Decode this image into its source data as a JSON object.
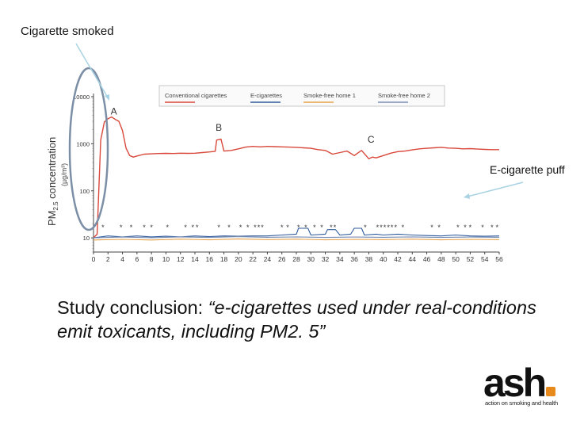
{
  "annotations": {
    "cigarette_smoked": "Cigarette smoked",
    "ecigarette_puff": "E-cigarette puff"
  },
  "conclusion": "Study conclusion: “e-cigarettes used under real-conditions emit toxicants, including PM2. 5”",
  "logo": {
    "word": "ash",
    "tagline": "action on smoking and health",
    "dot_color": "#e8891c"
  },
  "chart_data": {
    "type": "line",
    "ylabel_main": "PM",
    "ylabel_sub": "2.5",
    "ylabel_rest": " concentration",
    "ylabel_unit": "(µg/m³)",
    "yscale": "log",
    "ylim": [
      5,
      10000
    ],
    "yticks": [
      {
        "value": 10000,
        "label": "10000"
      },
      {
        "value": 1000,
        "label": "1000"
      },
      {
        "value": 100,
        "label": "100"
      },
      {
        "value": 10,
        "label": "10"
      }
    ],
    "xlim": [
      0,
      56
    ],
    "xticks": [
      "0",
      "2",
      "4",
      "6",
      "8",
      "10",
      "12",
      "14",
      "16",
      "18",
      "20",
      "22",
      "24",
      "26",
      "28",
      "30",
      "32",
      "34",
      "36",
      "38",
      "40",
      "42",
      "44",
      "46",
      "48",
      "50",
      "52",
      "54",
      "56"
    ],
    "legend_position": "top",
    "point_labels": [
      {
        "label": "A",
        "x": 2.8,
        "y": 4200
      },
      {
        "label": "B",
        "x": 17.3,
        "y": 1900
      },
      {
        "label": "C",
        "x": 38.3,
        "y": 1050
      }
    ],
    "puff_markers_x": [
      1.3,
      3.8,
      5.2,
      7.0,
      8.0,
      10.2,
      12.7,
      13.7,
      14.3,
      17.3,
      18.7,
      20.3,
      21.3,
      22.3,
      22.8,
      23.3,
      26.0,
      26.8,
      28.3,
      29.3,
      30.5,
      31.5,
      32.8,
      33.3,
      37.5,
      39.2,
      39.7,
      40.2,
      40.7,
      41.2,
      41.7,
      42.7,
      46.7,
      47.7,
      50.3,
      51.3,
      52.0,
      53.7,
      55.0,
      55.7
    ],
    "series": [
      {
        "name": "Conventional cigarettes",
        "color": "#d9483b",
        "points": [
          [
            0,
            10
          ],
          [
            0.5,
            12
          ],
          [
            1.0,
            1200
          ],
          [
            1.5,
            2900
          ],
          [
            2.0,
            3400
          ],
          [
            2.5,
            3700
          ],
          [
            3.0,
            3300
          ],
          [
            3.5,
            3000
          ],
          [
            4.0,
            1900
          ],
          [
            4.5,
            800
          ],
          [
            5.0,
            560
          ],
          [
            5.5,
            520
          ],
          [
            6.0,
            550
          ],
          [
            7.0,
            600
          ],
          [
            8.0,
            610
          ],
          [
            9.0,
            620
          ],
          [
            10.0,
            625
          ],
          [
            11.0,
            620
          ],
          [
            12.0,
            630
          ],
          [
            13.0,
            625
          ],
          [
            14.0,
            630
          ],
          [
            15.0,
            650
          ],
          [
            16.0,
            670
          ],
          [
            16.8,
            690
          ],
          [
            17.0,
            1200
          ],
          [
            17.6,
            1250
          ],
          [
            18.0,
            700
          ],
          [
            19.0,
            720
          ],
          [
            20.0,
            780
          ],
          [
            21.0,
            850
          ],
          [
            22.0,
            880
          ],
          [
            23.0,
            860
          ],
          [
            24.0,
            880
          ],
          [
            25.0,
            870
          ],
          [
            26.0,
            860
          ],
          [
            27.0,
            850
          ],
          [
            28.0,
            840
          ],
          [
            29.0,
            820
          ],
          [
            30.0,
            800
          ],
          [
            31.0,
            750
          ],
          [
            32.0,
            720
          ],
          [
            33.0,
            600
          ],
          [
            34.0,
            650
          ],
          [
            35.0,
            700
          ],
          [
            36.0,
            560
          ],
          [
            36.5,
            640
          ],
          [
            37.0,
            720
          ],
          [
            38.0,
            480
          ],
          [
            38.5,
            520
          ],
          [
            39.0,
            500
          ],
          [
            40.0,
            560
          ],
          [
            41.0,
            630
          ],
          [
            42.0,
            680
          ],
          [
            43.0,
            700
          ],
          [
            44.0,
            740
          ],
          [
            45.0,
            780
          ],
          [
            46.0,
            800
          ],
          [
            47.0,
            820
          ],
          [
            48.0,
            840
          ],
          [
            49.0,
            810
          ],
          [
            50.0,
            800
          ],
          [
            51.0,
            780
          ],
          [
            52.0,
            790
          ],
          [
            53.0,
            770
          ],
          [
            54.0,
            760
          ],
          [
            55.0,
            750
          ],
          [
            56.0,
            750
          ]
        ]
      },
      {
        "name": "E-cigarettes",
        "color": "#2f5a9a",
        "points": [
          [
            0,
            10
          ],
          [
            2,
            11
          ],
          [
            4,
            10.5
          ],
          [
            6,
            11
          ],
          [
            8,
            10.5
          ],
          [
            10,
            10.8
          ],
          [
            12,
            10.5
          ],
          [
            14,
            11
          ],
          [
            16,
            10.6
          ],
          [
            18,
            11
          ],
          [
            20,
            10.8
          ],
          [
            22,
            11
          ],
          [
            24,
            11
          ],
          [
            26,
            11.5
          ],
          [
            28,
            12
          ],
          [
            28.3,
            16
          ],
          [
            29.6,
            16
          ],
          [
            30,
            11.5
          ],
          [
            32,
            12
          ],
          [
            32.3,
            15
          ],
          [
            33.4,
            15
          ],
          [
            34,
            11.5
          ],
          [
            35.5,
            12
          ],
          [
            36,
            16
          ],
          [
            37,
            16
          ],
          [
            37.4,
            11.5
          ],
          [
            39,
            12
          ],
          [
            40,
            11.5
          ],
          [
            42,
            12
          ],
          [
            44,
            11.5
          ],
          [
            46,
            11.2
          ],
          [
            48,
            11
          ],
          [
            50,
            11.5
          ],
          [
            52,
            11
          ],
          [
            54,
            10.8
          ],
          [
            56,
            11
          ]
        ]
      },
      {
        "name": "Smoke-free home 1",
        "color": "#e6a14a",
        "points": [
          [
            0,
            9
          ],
          [
            4,
            9.3
          ],
          [
            8,
            9
          ],
          [
            12,
            9.4
          ],
          [
            16,
            9.1
          ],
          [
            20,
            9.5
          ],
          [
            24,
            9.2
          ],
          [
            28,
            9.4
          ],
          [
            32,
            9.1
          ],
          [
            36,
            9.3
          ],
          [
            40,
            9.2
          ],
          [
            44,
            9.4
          ],
          [
            48,
            9.1
          ],
          [
            52,
            9.3
          ],
          [
            56,
            9.2
          ]
        ]
      },
      {
        "name": "Smoke-free home 2",
        "color": "#7a8fb5",
        "points": [
          [
            0,
            10
          ],
          [
            4,
            10.4
          ],
          [
            8,
            10.1
          ],
          [
            12,
            10.5
          ],
          [
            16,
            10.2
          ],
          [
            20,
            10.6
          ],
          [
            24,
            10.3
          ],
          [
            28,
            10.5
          ],
          [
            32,
            10.2
          ],
          [
            36,
            10.4
          ],
          [
            40,
            10.3
          ],
          [
            44,
            10.5
          ],
          [
            48,
            10.2
          ],
          [
            52,
            10.4
          ],
          [
            56,
            10.3
          ]
        ]
      }
    ]
  }
}
